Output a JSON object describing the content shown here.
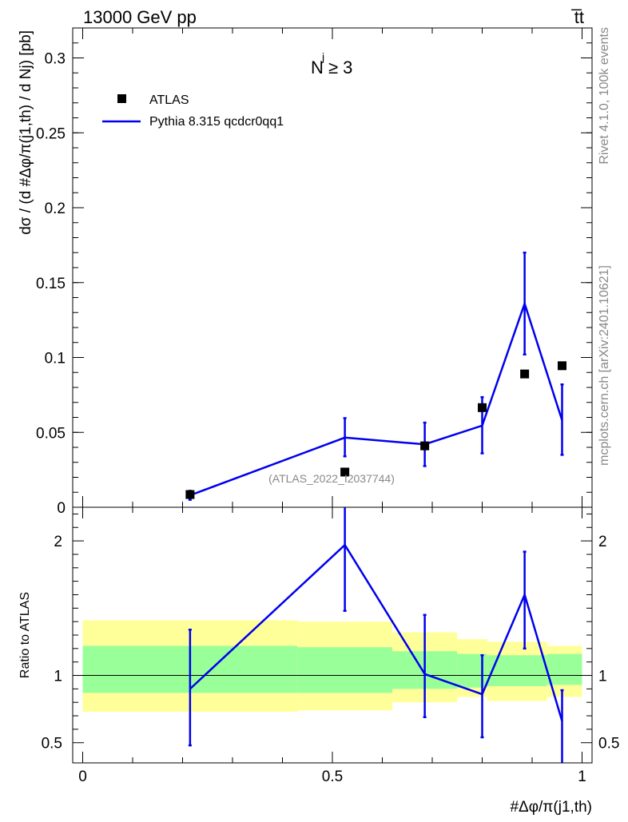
{
  "header": {
    "energy_label": "13000 GeV pp",
    "process_label": "t̅t"
  },
  "watermark": {
    "rivet_label": "Rivet 4.1.0,  100k events",
    "site_label": "mcplots.cern.ch [arXiv:2401.10621]"
  },
  "chart_data": {
    "type": "scatter",
    "analysis_label": "(ATLAS_2022_I2037744)",
    "annotation": "N  ≥ 3",
    "annotation_superscript": "j",
    "legend": {
      "placement": "top-left",
      "items": [
        {
          "label": "ATLAS",
          "marker": "square",
          "color": "#000000"
        },
        {
          "label": "Pythia 8.315 qcdcr0qq1",
          "marker": "line",
          "color": "#0000ee"
        }
      ]
    },
    "xlabel": "#Δφ/π(j1,th)",
    "xlim": [
      -0.02,
      1.02
    ],
    "x_ticks": [
      {
        "value": 0,
        "label": "0"
      },
      {
        "value": 0.5,
        "label": "0.5"
      },
      {
        "value": 1,
        "label": "1"
      }
    ],
    "main": {
      "ylabel": "dσ / (d #Δφ/π(j1,th) / d Nj) [pb]",
      "ylim": [
        0,
        0.32
      ],
      "y_ticks": [
        {
          "value": 0,
          "label": "0"
        },
        {
          "value": 0.05,
          "label": "0.05"
        },
        {
          "value": 0.1,
          "label": "0.1"
        },
        {
          "value": 0.15,
          "label": "0.15"
        },
        {
          "value": 0.2,
          "label": "0.2"
        },
        {
          "value": 0.25,
          "label": "0.25"
        },
        {
          "value": 0.3,
          "label": "0.3"
        }
      ],
      "data": {
        "name": "ATLAS",
        "x": [
          0.215,
          0.525,
          0.685,
          0.8,
          0.885,
          0.96
        ],
        "y": [
          0.0085,
          0.0235,
          0.041,
          0.0665,
          0.089,
          0.0945
        ]
      },
      "mc": {
        "name": "Pythia 8.315 qcdcr0qq1",
        "x": [
          0.215,
          0.525,
          0.685,
          0.8,
          0.885,
          0.96
        ],
        "y": [
          0.008,
          0.0465,
          0.042,
          0.0545,
          0.136,
          0.058
        ],
        "yerr_low": [
          0.003,
          0.0125,
          0.0145,
          0.0185,
          0.034,
          0.023
        ],
        "yerr_high": [
          0.003,
          0.013,
          0.0145,
          0.019,
          0.034,
          0.024
        ]
      }
    },
    "ratio": {
      "ylabel": "Ratio to ATLAS",
      "ylim": [
        0.35,
        2.25
      ],
      "y_ticks": [
        {
          "value": 0.5,
          "label": "0.5"
        },
        {
          "value": 1,
          "label": "1"
        },
        {
          "value": 2,
          "label": "2"
        }
      ],
      "reference_line": 1,
      "bands": {
        "edges": [
          0,
          0.43,
          0.62,
          0.75,
          0.81,
          0.93,
          1.0
        ],
        "green_low": [
          0.87,
          0.87,
          0.9,
          0.91,
          0.92,
          0.93
        ],
        "green_high": [
          1.22,
          1.21,
          1.18,
          1.16,
          1.15,
          1.16
        ],
        "yellow_low": [
          0.73,
          0.74,
          0.8,
          0.84,
          0.81,
          0.84
        ],
        "yellow_high": [
          1.41,
          1.4,
          1.32,
          1.27,
          1.25,
          1.22
        ]
      },
      "mc": {
        "x": [
          0.215,
          0.525,
          0.685,
          0.8,
          0.885,
          0.96
        ],
        "y": [
          0.9,
          1.97,
          1.01,
          0.86,
          1.6,
          0.66
        ],
        "yerr_low": [
          0.42,
          0.49,
          0.32,
          0.32,
          0.4,
          0.32
        ],
        "yerr_high": [
          0.44,
          0.43,
          0.44,
          0.29,
          0.32,
          0.23
        ]
      }
    }
  }
}
